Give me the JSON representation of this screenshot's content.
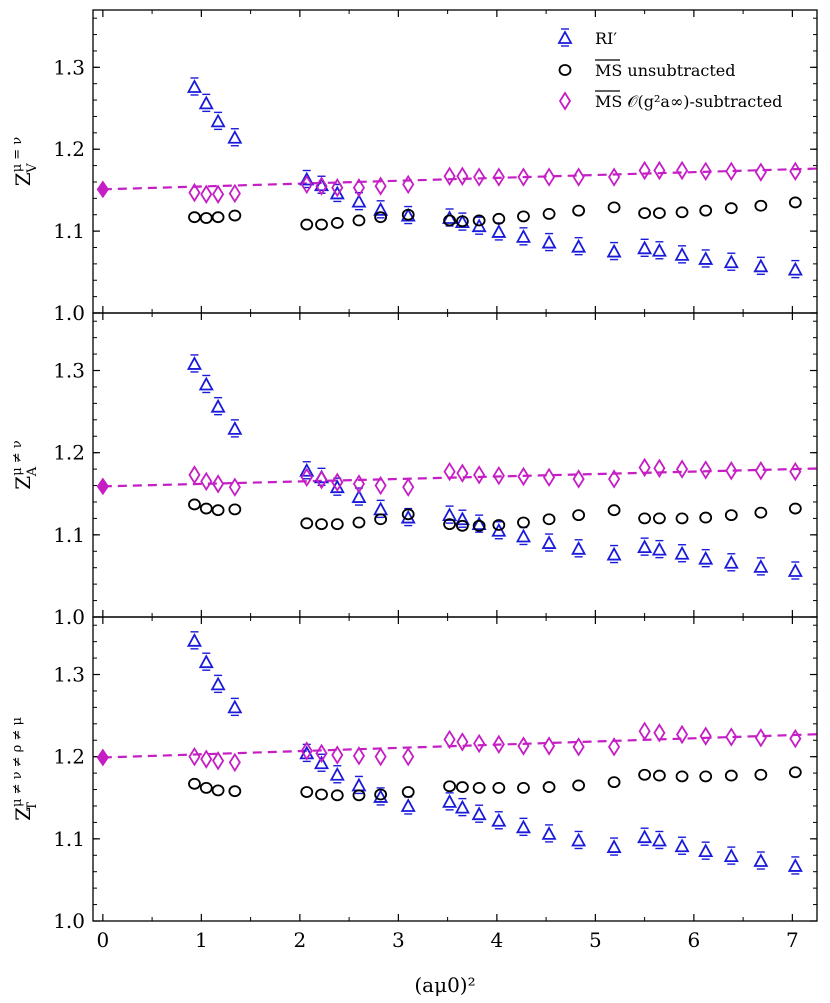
{
  "chart_data": {
    "type": "scatter",
    "xlabel": "(aμ0)²",
    "xlim": [
      -0.1,
      7.25
    ],
    "ylim": [
      1.0,
      1.37
    ],
    "xticks": [
      0,
      1,
      2,
      3,
      4,
      5,
      6,
      7
    ],
    "yticks": [
      1.0,
      1.1,
      1.2,
      1.3
    ],
    "colors": {
      "ri": "#1a1adb",
      "ms": "#000000",
      "sub": "#c41ec4"
    },
    "legend": {
      "location": "top-right",
      "entries": [
        "RI′",
        "MS unsubtracted",
        "MS 𝒪(g²a∞)-subtracted"
      ]
    },
    "x": [
      0.93,
      1.05,
      1.17,
      1.34,
      2.07,
      2.22,
      2.38,
      2.6,
      2.82,
      3.1,
      3.52,
      3.65,
      3.82,
      4.02,
      4.27,
      4.53,
      4.83,
      5.19,
      5.5,
      5.65,
      5.88,
      6.12,
      6.38,
      6.68,
      7.03
    ],
    "panels": [
      {
        "ylabel_main": "Z",
        "ylabel_sup": "μ = ν",
        "ylabel_sub": "V",
        "series": [
          {
            "name": "RI′",
            "marker": "triangle",
            "values": [
              1.276,
              1.256,
              1.234,
              1.214,
              1.163,
              1.156,
              1.146,
              1.136,
              1.126,
              1.119,
              1.116,
              1.111,
              1.106,
              1.099,
              1.093,
              1.086,
              1.081,
              1.075,
              1.079,
              1.076,
              1.071,
              1.066,
              1.062,
              1.057,
              1.053
            ]
          },
          {
            "name": "MS unsubtracted",
            "marker": "circle",
            "values": [
              1.117,
              1.116,
              1.117,
              1.119,
              1.108,
              1.108,
              1.11,
              1.113,
              1.117,
              1.12,
              1.113,
              1.112,
              1.113,
              1.115,
              1.118,
              1.121,
              1.125,
              1.129,
              1.122,
              1.122,
              1.123,
              1.125,
              1.128,
              1.131,
              1.135
            ]
          },
          {
            "name": "MS 𝒪(g²a∞)-subtracted",
            "marker": "diamond",
            "values": [
              1.147,
              1.145,
              1.145,
              1.146,
              1.157,
              1.155,
              1.153,
              1.153,
              1.155,
              1.157,
              1.167,
              1.167,
              1.166,
              1.166,
              1.166,
              1.166,
              1.166,
              1.166,
              1.174,
              1.174,
              1.174,
              1.173,
              1.173,
              1.172,
              1.173
            ]
          }
        ],
        "fit": {
          "intercept": 1.151,
          "slope": 0.0035
        }
      },
      {
        "ylabel_main": "Z",
        "ylabel_sup": "μ ≠ ν",
        "ylabel_sub": "A",
        "series": [
          {
            "name": "RI′",
            "marker": "triangle",
            "values": [
              1.308,
              1.283,
              1.256,
              1.229,
              1.178,
              1.17,
              1.158,
              1.146,
              1.131,
              1.121,
              1.124,
              1.119,
              1.113,
              1.105,
              1.098,
              1.09,
              1.083,
              1.076,
              1.085,
              1.082,
              1.077,
              1.071,
              1.066,
              1.061,
              1.056
            ]
          },
          {
            "name": "MS unsubtracted",
            "marker": "circle",
            "values": [
              1.137,
              1.132,
              1.13,
              1.131,
              1.114,
              1.113,
              1.113,
              1.115,
              1.119,
              1.125,
              1.113,
              1.111,
              1.111,
              1.112,
              1.115,
              1.119,
              1.124,
              1.13,
              1.12,
              1.12,
              1.12,
              1.121,
              1.124,
              1.127,
              1.132
            ]
          },
          {
            "name": "MS 𝒪(g²a∞)-subtracted",
            "marker": "diamond",
            "values": [
              1.173,
              1.165,
              1.162,
              1.158,
              1.17,
              1.167,
              1.164,
              1.162,
              1.16,
              1.158,
              1.177,
              1.175,
              1.173,
              1.172,
              1.171,
              1.17,
              1.168,
              1.168,
              1.182,
              1.181,
              1.18,
              1.179,
              1.178,
              1.178,
              1.177
            ]
          }
        ],
        "fit": {
          "intercept": 1.159,
          "slope": 0.003
        }
      },
      {
        "ylabel_main": "Z",
        "ylabel_sup": "μ ≠ ν ≠ ρ ≠ μ",
        "ylabel_sub": "T",
        "series": [
          {
            "name": "RI′",
            "marker": "triangle",
            "values": [
              1.341,
              1.315,
              1.288,
              1.26,
              1.204,
              1.192,
              1.178,
              1.165,
              1.151,
              1.14,
              1.145,
              1.138,
              1.13,
              1.122,
              1.114,
              1.106,
              1.098,
              1.09,
              1.102,
              1.098,
              1.091,
              1.085,
              1.079,
              1.073,
              1.067
            ]
          },
          {
            "name": "MS unsubtracted",
            "marker": "circle",
            "values": [
              1.167,
              1.162,
              1.159,
              1.158,
              1.157,
              1.154,
              1.153,
              1.153,
              1.154,
              1.157,
              1.164,
              1.163,
              1.162,
              1.162,
              1.162,
              1.163,
              1.165,
              1.169,
              1.178,
              1.177,
              1.176,
              1.176,
              1.177,
              1.178,
              1.181
            ]
          },
          {
            "name": "MS 𝒪(g²a∞)-subtracted",
            "marker": "diamond",
            "values": [
              1.2,
              1.197,
              1.195,
              1.193,
              1.207,
              1.204,
              1.202,
              1.201,
              1.2,
              1.2,
              1.221,
              1.218,
              1.216,
              1.215,
              1.213,
              1.213,
              1.212,
              1.212,
              1.231,
              1.229,
              1.227,
              1.225,
              1.224,
              1.223,
              1.222
            ]
          }
        ],
        "fit": {
          "intercept": 1.199,
          "slope": 0.0039
        }
      }
    ]
  }
}
